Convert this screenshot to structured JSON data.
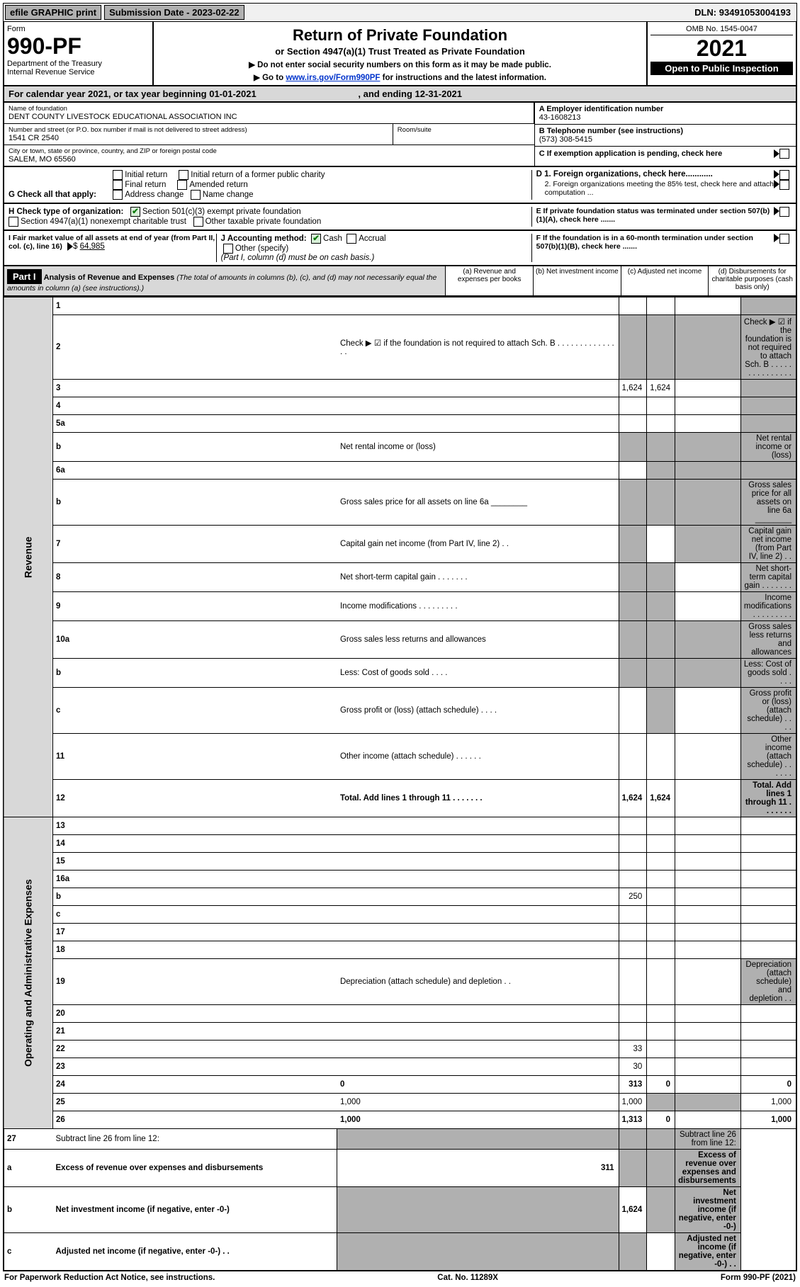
{
  "topbar": {
    "efile": "efile GRAPHIC print",
    "subdate_label": "Submission Date - ",
    "subdate": "2023-02-22",
    "dln_label": "DLN: ",
    "dln": "93491053004193"
  },
  "header": {
    "form_label": "Form",
    "form_no": "990-PF",
    "dept1": "Department of the Treasury",
    "dept2": "Internal Revenue Service",
    "title": "Return of Private Foundation",
    "subtitle": "or Section 4947(a)(1) Trust Treated as Private Foundation",
    "note1": "▶ Do not enter social security numbers on this form as it may be made public.",
    "note2_pre": "▶ Go to ",
    "note2_link": "www.irs.gov/Form990PF",
    "note2_post": " for instructions and the latest information.",
    "omb": "OMB No. 1545-0047",
    "year": "2021",
    "open": "Open to Public Inspection"
  },
  "calyear": {
    "text": "For calendar year 2021, or tax year beginning 01-01-2021",
    "end": ", and ending 12-31-2021"
  },
  "info": {
    "name_lbl": "Name of foundation",
    "name": "DENT COUNTY LIVESTOCK EDUCATIONAL ASSOCIATION INC",
    "addr_lbl": "Number and street (or P.O. box number if mail is not delivered to street address)",
    "addr": "1541 CR 2540",
    "room_lbl": "Room/suite",
    "city_lbl": "City or town, state or province, country, and ZIP or foreign postal code",
    "city": "SALEM, MO  65560",
    "ein_lbl": "A Employer identification number",
    "ein": "43-1608213",
    "tel_lbl": "B Telephone number (see instructions)",
    "tel": "(573) 308-5415",
    "c_lbl": "C If exemption application is pending, check here",
    "d1": "D 1. Foreign organizations, check here............",
    "d2": "2. Foreign organizations meeting the 85% test, check here and attach computation ...",
    "e": "E  If private foundation status was terminated under section 507(b)(1)(A), check here .......",
    "f": "F  If the foundation is in a 60-month termination under section 507(b)(1)(B), check here .......",
    "g_lbl": "G Check all that apply:",
    "g_opts": [
      "Initial return",
      "Final return",
      "Address change",
      "Initial return of a former public charity",
      "Amended return",
      "Name change"
    ],
    "h_lbl": "H Check type of organization:",
    "h1": "Section 501(c)(3) exempt private foundation",
    "h2": "Section 4947(a)(1) nonexempt charitable trust",
    "h3": "Other taxable private foundation",
    "i_lbl": "I Fair market value of all assets at end of year (from Part II, col. (c), line 16)",
    "i_val": "64,985",
    "j_lbl": "J Accounting method:",
    "j_cash": "Cash",
    "j_accrual": "Accrual",
    "j_other": "Other (specify)",
    "j_note": "(Part I, column (d) must be on cash basis.)"
  },
  "part1": {
    "label": "Part I",
    "title": "Analysis of Revenue and Expenses",
    "title_note": " (The total of amounts in columns (b), (c), and (d) may not necessarily equal the amounts in column (a) (see instructions).)",
    "cols": {
      "a": "(a)   Revenue and expenses per books",
      "b": "(b)   Net investment income",
      "c": "(c)   Adjusted net income",
      "d": "(d)   Disbursements for charitable purposes (cash basis only)"
    }
  },
  "rows": [
    {
      "n": "1",
      "d": "",
      "a": "",
      "b": "",
      "c": "",
      "grey_d": true
    },
    {
      "n": "2",
      "d": "Check ▶ ☑ if the foundation is not required to attach Sch. B   .  .  .  .  .  .  .  .  .  .  .  .  .  .  .",
      "a": null,
      "grey_all": true
    },
    {
      "n": "3",
      "d": "",
      "a": "1,624",
      "b": "1,624",
      "c": "",
      "grey_d": true
    },
    {
      "n": "4",
      "d": "",
      "a": "",
      "b": "",
      "c": "",
      "grey_d": true
    },
    {
      "n": "5a",
      "d": "",
      "a": "",
      "b": "",
      "c": "",
      "grey_d": true
    },
    {
      "n": "b",
      "d": "Net rental income or (loss)",
      "a": null,
      "grey_all": true
    },
    {
      "n": "6a",
      "d": null,
      "a": "",
      "b": null,
      "c": null,
      "grey_bcd": true
    },
    {
      "n": "b",
      "d": "Gross sales price for all assets on line 6a ________",
      "a": null,
      "grey_all": true
    },
    {
      "n": "7",
      "d": "Capital gain net income (from Part IV, line 2)   .   .",
      "a": null,
      "b": "",
      "grey_a": true,
      "grey_cd": true
    },
    {
      "n": "8",
      "d": "Net short-term capital gain  .   .   .   .   .   .   .",
      "a": null,
      "grey_ab": true,
      "c": "",
      "grey_d": true
    },
    {
      "n": "9",
      "d": "Income modifications  .   .   .   .   .   .   .   .   .",
      "a": null,
      "grey_ab": true,
      "c": "",
      "grey_d": true
    },
    {
      "n": "10a",
      "d": "Gross sales less returns and allowances",
      "a": null,
      "grey_all": true
    },
    {
      "n": "b",
      "d": "Less: Cost of goods sold   .   .   .   .",
      "a": null,
      "grey_all": true
    },
    {
      "n": "c",
      "d": "Gross profit or (loss) (attach schedule)   .   .   .   .",
      "a": "",
      "grey_b": true,
      "c": "",
      "grey_d": true
    },
    {
      "n": "11",
      "d": "Other income (attach schedule)   .   .   .   .   .   .",
      "a": "",
      "b": "",
      "c": "",
      "grey_d": true
    },
    {
      "n": "12",
      "d": "Total. Add lines 1 through 11   .   .   .   .   .   .   .",
      "a": "1,624",
      "b": "1,624",
      "c": "",
      "grey_d": true,
      "bold": true
    }
  ],
  "exp_rows": [
    {
      "n": "13",
      "d": "",
      "a": "",
      "b": "",
      "c": ""
    },
    {
      "n": "14",
      "d": "",
      "a": "",
      "b": "",
      "c": ""
    },
    {
      "n": "15",
      "d": "",
      "a": "",
      "b": "",
      "c": ""
    },
    {
      "n": "16a",
      "d": "",
      "a": "",
      "b": "",
      "c": ""
    },
    {
      "n": "b",
      "d": "",
      "a": "250",
      "b": "",
      "c": ""
    },
    {
      "n": "c",
      "d": "",
      "a": "",
      "b": "",
      "c": ""
    },
    {
      "n": "17",
      "d": "",
      "a": "",
      "b": "",
      "c": ""
    },
    {
      "n": "18",
      "d": "",
      "a": "",
      "b": "",
      "c": ""
    },
    {
      "n": "19",
      "d": "Depreciation (attach schedule) and depletion   .   .",
      "a": "",
      "b": "",
      "c": "",
      "grey_d": true
    },
    {
      "n": "20",
      "d": "",
      "a": "",
      "b": "",
      "c": ""
    },
    {
      "n": "21",
      "d": "",
      "a": "",
      "b": "",
      "c": ""
    },
    {
      "n": "22",
      "d": "",
      "a": "33",
      "b": "",
      "c": ""
    },
    {
      "n": "23",
      "d": "",
      "a": "30",
      "b": "",
      "c": ""
    },
    {
      "n": "24",
      "d": "0",
      "a": "313",
      "b": "0",
      "c": "",
      "bold": true
    },
    {
      "n": "25",
      "d": "1,000",
      "a": "1,000",
      "grey_bc": true
    },
    {
      "n": "26",
      "d": "1,000",
      "a": "1,313",
      "b": "0",
      "c": "",
      "bold": true
    }
  ],
  "bottom_rows": [
    {
      "n": "27",
      "d": "Subtract line 26 from line 12:",
      "grey_all": true
    },
    {
      "n": "a",
      "d": "Excess of revenue over expenses and disbursements",
      "a": "311",
      "grey_bcd": true,
      "bold": true
    },
    {
      "n": "b",
      "d": "Net investment income (if negative, enter -0-)",
      "grey_a": true,
      "b": "1,624",
      "grey_cd": true,
      "bold": true
    },
    {
      "n": "c",
      "d": "Adjusted net income (if negative, enter -0-)   .   .",
      "grey_ab": true,
      "c": "",
      "grey_d": true,
      "bold": true
    }
  ],
  "footer": {
    "left": "For Paperwork Reduction Act Notice, see instructions.",
    "mid": "Cat. No. 11289X",
    "right": "Form 990-PF (2021)"
  }
}
